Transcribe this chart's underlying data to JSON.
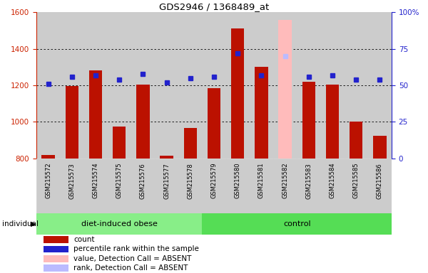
{
  "title": "GDS2946 / 1368489_at",
  "samples": [
    "GSM215572",
    "GSM215573",
    "GSM215574",
    "GSM215575",
    "GSM215576",
    "GSM215577",
    "GSM215578",
    "GSM215579",
    "GSM215580",
    "GSM215581",
    "GSM215582",
    "GSM215583",
    "GSM215584",
    "GSM215585",
    "GSM215586"
  ],
  "counts": [
    820,
    1195,
    1280,
    975,
    1205,
    815,
    965,
    1185,
    1510,
    1300,
    1560,
    1220,
    1205,
    1000,
    925
  ],
  "percentile_ranks": [
    51,
    56,
    57,
    54,
    58,
    52,
    55,
    56,
    72,
    57,
    70,
    56,
    57,
    54,
    54
  ],
  "absent_indices": [
    10
  ],
  "ylim_left": [
    800,
    1600
  ],
  "ylim_right": [
    0,
    100
  ],
  "yticks_left": [
    800,
    1000,
    1200,
    1400,
    1600
  ],
  "yticks_right": [
    0,
    25,
    50,
    75,
    100
  ],
  "bar_color": "#bb1100",
  "dot_color": "#2222cc",
  "absent_bar_color": "#ffbbbb",
  "absent_dot_color": "#bbbbff",
  "group1_label": "diet-induced obese",
  "group2_label": "control",
  "group1_indices": [
    0,
    1,
    2,
    3,
    4,
    5,
    6
  ],
  "group2_indices": [
    7,
    8,
    9,
    10,
    11,
    12,
    13,
    14
  ],
  "group1_color": "#88ee88",
  "group2_color": "#55dd55",
  "bg_color": "#cccccc",
  "legend_items": [
    {
      "label": "count",
      "color": "#bb1100"
    },
    {
      "label": "percentile rank within the sample",
      "color": "#2222cc"
    },
    {
      "label": "value, Detection Call = ABSENT",
      "color": "#ffbbbb"
    },
    {
      "label": "rank, Detection Call = ABSENT",
      "color": "#bbbbff"
    }
  ]
}
